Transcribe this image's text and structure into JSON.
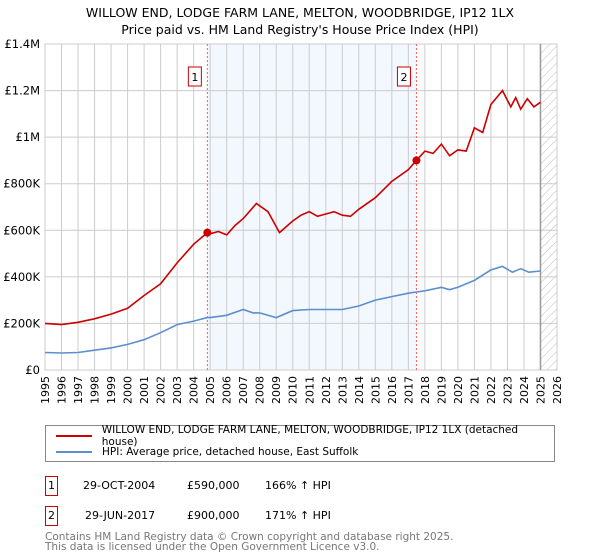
{
  "title_line1": "WILLOW END, LODGE FARM LANE, MELTON, WOODBRIDGE, IP12 1LX",
  "title_line2": "Price paid vs. HM Land Registry's House Price Index (HPI)",
  "chart_data": {
    "type": "line",
    "title": "WILLOW END, LODGE FARM LANE, MELTON, WOODBRIDGE, IP12 1LX — Price paid vs. HM Land Registry's House Price Index (HPI)",
    "xlim": [
      1995,
      2026
    ],
    "ylim": [
      0,
      1400000
    ],
    "x_ticks": [
      "1995",
      "1996",
      "1997",
      "1998",
      "1999",
      "2000",
      "2001",
      "2002",
      "2003",
      "2004",
      "2005",
      "2006",
      "2007",
      "2008",
      "2009",
      "2010",
      "2011",
      "2012",
      "2013",
      "2014",
      "2015",
      "2016",
      "2017",
      "2018",
      "2019",
      "2020",
      "2021",
      "2022",
      "2023",
      "2024",
      "2025",
      "2026"
    ],
    "y_ticks": [
      {
        "v": 0,
        "label": "£0"
      },
      {
        "v": 200000,
        "label": "£200K"
      },
      {
        "v": 400000,
        "label": "£400K"
      },
      {
        "v": 600000,
        "label": "£600K"
      },
      {
        "v": 800000,
        "label": "£800K"
      },
      {
        "v": 1000000,
        "label": "£1M"
      },
      {
        "v": 1200000,
        "label": "£1.2M"
      },
      {
        "v": 1400000,
        "label": "£1.4M"
      }
    ],
    "grid": true,
    "shaded_range": [
      2004.83,
      2017.49
    ],
    "hatched_from": 2025.0,
    "series": [
      {
        "name": "WILLOW END, LODGE FARM LANE, MELTON, WOODBRIDGE, IP12 1LX (detached house)",
        "color": "#cc0000",
        "x": [
          1995,
          1996,
          1997,
          1998,
          1999,
          2000,
          2001,
          2002,
          2003,
          2004,
          2004.83,
          2005,
          2005.5,
          2006,
          2006.5,
          2007,
          2007.8,
          2008.5,
          2009.2,
          2010,
          2010.5,
          2011,
          2011.5,
          2012,
          2012.5,
          2013,
          2013.5,
          2014,
          2015,
          2016,
          2017,
          2017.49,
          2018,
          2018.5,
          2019,
          2019.5,
          2020,
          2020.5,
          2021,
          2021.5,
          2022,
          2022.7,
          2023.2,
          2023.5,
          2023.8,
          2024.2,
          2024.6,
          2025
        ],
        "y": [
          200000,
          195000,
          205000,
          220000,
          240000,
          265000,
          320000,
          370000,
          460000,
          540000,
          590000,
          585000,
          595000,
          580000,
          620000,
          650000,
          715000,
          680000,
          590000,
          640000,
          665000,
          680000,
          660000,
          670000,
          680000,
          665000,
          660000,
          690000,
          740000,
          810000,
          860000,
          900000,
          940000,
          930000,
          970000,
          920000,
          945000,
          940000,
          1040000,
          1020000,
          1140000,
          1200000,
          1130000,
          1170000,
          1120000,
          1165000,
          1130000,
          1150000
        ]
      },
      {
        "name": "HPI: Average price, detached house, East Suffolk",
        "color": "#5b8fd0",
        "x": [
          1995,
          1996,
          1997,
          1998,
          1999,
          2000,
          2001,
          2002,
          2003,
          2004,
          2004.83,
          2005,
          2006,
          2007,
          2007.6,
          2008,
          2009,
          2010,
          2011,
          2012,
          2013,
          2014,
          2015,
          2016,
          2017,
          2017.49,
          2018,
          2019,
          2019.5,
          2020,
          2021,
          2022,
          2022.7,
          2023.3,
          2023.8,
          2024.3,
          2025
        ],
        "y": [
          75000,
          73000,
          75000,
          85000,
          95000,
          110000,
          130000,
          160000,
          195000,
          210000,
          225000,
          225000,
          235000,
          260000,
          245000,
          245000,
          225000,
          255000,
          260000,
          260000,
          260000,
          275000,
          300000,
          315000,
          330000,
          335000,
          340000,
          355000,
          345000,
          355000,
          385000,
          430000,
          445000,
          420000,
          435000,
          420000,
          425000
        ]
      }
    ],
    "annotations": [
      {
        "label": "1",
        "x": 2004.83,
        "y": 590000
      },
      {
        "label": "2",
        "x": 2017.49,
        "y": 900000
      }
    ]
  },
  "legend": [
    {
      "label": "WILLOW END, LODGE FARM LANE, MELTON, WOODBRIDGE, IP12 1LX (detached house)",
      "color": "#cc0000"
    },
    {
      "label": "HPI: Average price, detached house, East Suffolk",
      "color": "#5b8fd0"
    }
  ],
  "transactions": [
    {
      "num": "1",
      "date": "29-OCT-2004",
      "price": "£590,000",
      "hpi": "166% ↑ HPI"
    },
    {
      "num": "2",
      "date": "29-JUN-2017",
      "price": "£900,000",
      "hpi": "171% ↑ HPI"
    }
  ],
  "footer_line1": "Contains HM Land Registry data © Crown copyright and database right 2025.",
  "footer_line2": "This data is licensed under the Open Government Licence v3.0."
}
